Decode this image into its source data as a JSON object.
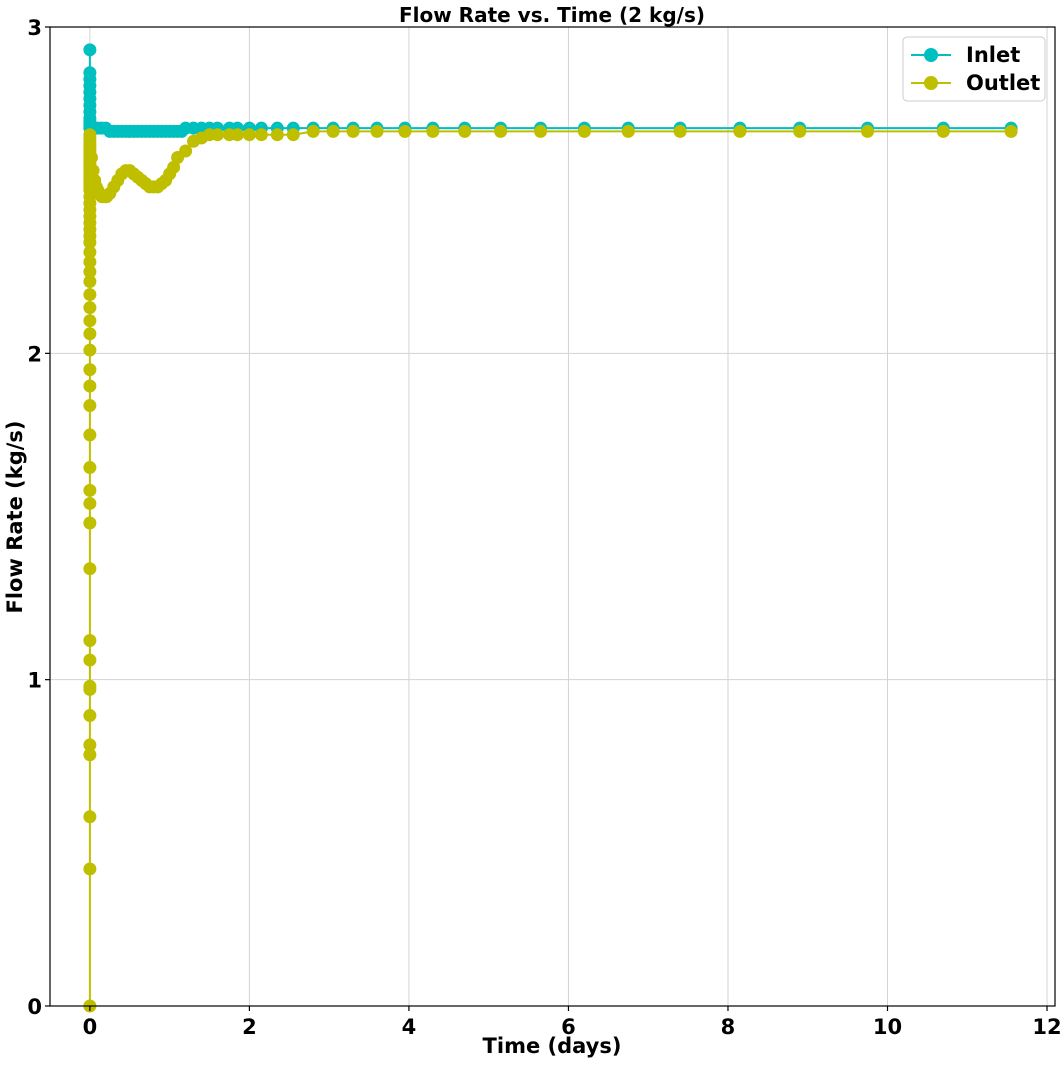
{
  "chart_data": {
    "type": "line",
    "title": "Flow Rate vs. Time (2 kg/s)",
    "xlabel": "Time (days)",
    "ylabel": "Flow Rate (kg/s)",
    "xlim": [
      -0.5,
      12.1
    ],
    "ylim": [
      0,
      3
    ],
    "xticks": [
      0,
      2,
      4,
      6,
      8,
      10,
      12
    ],
    "xtick_labels": [
      "0",
      "2",
      "4",
      "6",
      "8",
      "10",
      "12"
    ],
    "yticks": [
      0,
      1,
      2,
      3
    ],
    "ytick_labels": [
      "0",
      "1",
      "2",
      "3"
    ],
    "grid": true,
    "legend_position": "top-right",
    "series": [
      {
        "name": "Inlet",
        "color": "#00bfbf",
        "x": [
          0,
          0,
          0,
          0,
          0,
          0,
          0,
          0,
          0,
          0,
          0,
          0,
          0.02,
          0.05,
          0.1,
          0.15,
          0.2,
          0.25,
          0.3,
          0.35,
          0.4,
          0.45,
          0.5,
          0.55,
          0.6,
          0.65,
          0.7,
          0.75,
          0.8,
          0.85,
          0.9,
          0.95,
          1.0,
          1.05,
          1.1,
          1.15,
          1.2,
          1.3,
          1.4,
          1.5,
          1.6,
          1.75,
          1.85,
          2.0,
          2.15,
          2.35,
          2.55,
          2.8,
          3.05,
          3.3,
          3.6,
          3.95,
          4.3,
          4.7,
          5.15,
          5.65,
          6.2,
          6.75,
          7.4,
          8.15,
          8.9,
          9.75,
          10.7,
          11.55
        ],
        "y": [
          2.93,
          2.86,
          2.84,
          2.82,
          2.8,
          2.78,
          2.76,
          2.74,
          2.72,
          2.71,
          2.7,
          2.69,
          2.69,
          2.69,
          2.69,
          2.69,
          2.69,
          2.68,
          2.68,
          2.68,
          2.68,
          2.68,
          2.68,
          2.68,
          2.68,
          2.68,
          2.68,
          2.68,
          2.68,
          2.68,
          2.68,
          2.68,
          2.68,
          2.68,
          2.68,
          2.68,
          2.69,
          2.69,
          2.69,
          2.69,
          2.69,
          2.69,
          2.69,
          2.69,
          2.69,
          2.69,
          2.69,
          2.69,
          2.69,
          2.69,
          2.69,
          2.69,
          2.69,
          2.69,
          2.69,
          2.69,
          2.69,
          2.69,
          2.69,
          2.69,
          2.69,
          2.69,
          2.69,
          2.69
        ]
      },
      {
        "name": "Outlet",
        "color": "#bfbf00",
        "x": [
          0,
          0,
          0,
          0,
          0,
          0,
          0,
          0,
          0,
          0,
          0,
          0,
          0,
          0,
          0,
          0,
          0,
          0,
          0,
          0,
          0,
          0,
          0,
          0,
          0,
          0,
          0,
          0,
          0,
          0,
          0,
          0,
          0,
          0,
          0,
          0,
          0,
          0,
          0,
          0,
          0,
          0,
          0,
          0,
          0,
          0,
          0,
          0,
          0,
          0,
          0,
          0,
          0,
          0,
          0.02,
          0.04,
          0.06,
          0.08,
          0.1,
          0.12,
          0.15,
          0.18,
          0.21,
          0.25,
          0.3,
          0.35,
          0.4,
          0.45,
          0.5,
          0.55,
          0.6,
          0.65,
          0.7,
          0.75,
          0.8,
          0.85,
          0.9,
          0.95,
          1.0,
          1.05,
          1.1,
          1.2,
          1.3,
          1.4,
          1.5,
          1.6,
          1.75,
          1.85,
          2.0,
          2.15,
          2.35,
          2.55,
          2.8,
          3.05,
          3.3,
          3.6,
          3.95,
          4.3,
          4.7,
          5.15,
          5.65,
          6.2,
          6.75,
          7.4,
          8.15,
          8.9,
          9.75,
          10.7,
          11.55
        ],
        "y": [
          0.0,
          0.42,
          0.58,
          0.77,
          0.8,
          0.89,
          0.97,
          0.98,
          1.06,
          1.12,
          1.34,
          1.48,
          1.54,
          1.58,
          1.65,
          1.75,
          1.84,
          1.9,
          1.95,
          2.01,
          2.06,
          2.1,
          2.14,
          2.18,
          2.22,
          2.25,
          2.28,
          2.31,
          2.34,
          2.36,
          2.38,
          2.4,
          2.42,
          2.44,
          2.46,
          2.48,
          2.5,
          2.51,
          2.52,
          2.53,
          2.54,
          2.55,
          2.56,
          2.57,
          2.58,
          2.59,
          2.6,
          2.61,
          2.62,
          2.63,
          2.64,
          2.65,
          2.66,
          2.67,
          2.6,
          2.56,
          2.53,
          2.51,
          2.5,
          2.49,
          2.48,
          2.48,
          2.48,
          2.49,
          2.51,
          2.53,
          2.55,
          2.56,
          2.56,
          2.55,
          2.54,
          2.53,
          2.52,
          2.51,
          2.51,
          2.51,
          2.52,
          2.53,
          2.55,
          2.57,
          2.6,
          2.62,
          2.65,
          2.66,
          2.67,
          2.67,
          2.67,
          2.67,
          2.67,
          2.67,
          2.67,
          2.67,
          2.68,
          2.68,
          2.68,
          2.68,
          2.68,
          2.68,
          2.68,
          2.68,
          2.68,
          2.68,
          2.68,
          2.68,
          2.68,
          2.68,
          2.68,
          2.68,
          2.68
        ]
      }
    ]
  }
}
